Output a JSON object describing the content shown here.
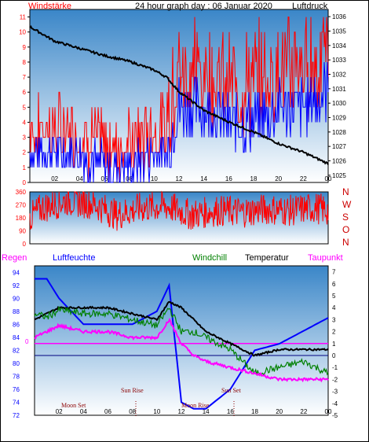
{
  "colors": {
    "wind": "#ff0000",
    "gust_fill": "#0000ff",
    "pressure": "#000000",
    "temperature": "#000000",
    "windchill": "#008000",
    "dewpoint": "#ff00ff",
    "humidity": "#0000ff",
    "rain": "#ff00ff",
    "bg_top": "#3a86c8",
    "bg_bottom": "#ffffff"
  },
  "top_chart": {
    "title": "24 hour graph day : 06 Januar 2020",
    "left_label": "Windstärke",
    "right_label": "Luftdruck",
    "x_ticks": [
      "02",
      "04",
      "06",
      "08",
      "10",
      "12",
      "14",
      "16",
      "18",
      "20",
      "22",
      "00"
    ],
    "y_left_ticks": [
      "0",
      "1",
      "2",
      "3",
      "4",
      "5",
      "6",
      "7",
      "8",
      "9",
      "10",
      "11"
    ],
    "y_right_ticks": [
      "1025",
      "1026",
      "1027",
      "1028",
      "1029",
      "1030",
      "1031",
      "1032",
      "1033",
      "1034",
      "1035",
      "1036"
    ]
  },
  "direction_chart": {
    "y_ticks": [
      "0",
      "90",
      "180",
      "270",
      "360"
    ],
    "right_labels": [
      "N",
      "W",
      "S",
      "O",
      "N"
    ]
  },
  "bottom_chart": {
    "labels": {
      "rain": "Regen",
      "humidity": "Luftfeuchte",
      "windchill": "Windchill",
      "temperature": "Temperatur",
      "dewpoint": "Taupunkt"
    },
    "y_left_ticks": [
      "72",
      "74",
      "76",
      "78",
      "80",
      "82",
      "84",
      "86",
      "88",
      "90",
      "92",
      "94"
    ],
    "y_right_ticks": [
      "-5",
      "-4",
      "-3",
      "-2",
      "-1",
      "0",
      "1",
      "2",
      "3",
      "4",
      "5",
      "6",
      "7"
    ],
    "x_ticks": [
      "02",
      "04",
      "06",
      "08",
      "10",
      "12",
      "14",
      "16",
      "18",
      "20",
      "22",
      "00"
    ],
    "rain_axis_label": "0",
    "events": {
      "moon_set": "Moon Set",
      "sun_rise": "Sun Rise",
      "moon_rise": "Moon Rise",
      "sun_set": "Sun Set"
    }
  },
  "chart_data": [
    {
      "type": "line",
      "title": "24 hour graph day : 06 Januar 2020",
      "xlabel": "",
      "ylabel": "Windstärke",
      "y2label": "Luftdruck",
      "ylim": [
        0,
        11.5
      ],
      "y2lim": [
        1024.5,
        1036.5
      ],
      "x_hours": [
        0,
        2,
        4,
        6,
        8,
        10,
        11,
        12,
        14,
        16,
        18,
        20,
        22,
        24
      ],
      "series": [
        {
          "name": "Luftdruck",
          "axis": "right",
          "values": [
            1035.3,
            1034.3,
            1033.8,
            1033.3,
            1032.9,
            1032.3,
            1031.8,
            1030.8,
            1029.5,
            1028.7,
            1028.0,
            1027.2,
            1026.6,
            1025.8
          ]
        },
        {
          "name": "Windstärke",
          "axis": "left",
          "values": [
            2,
            2,
            2,
            1,
            1,
            2,
            2,
            5,
            5,
            4,
            4,
            5,
            5,
            6
          ]
        }
      ]
    },
    {
      "type": "line",
      "ylim": [
        0,
        360
      ],
      "x_hours": [
        0,
        1,
        3,
        5,
        7,
        9,
        11,
        13,
        15,
        17,
        19,
        21,
        23,
        24
      ],
      "series": [
        {
          "values": [
            180,
            250,
            300,
            280,
            200,
            250,
            260,
            200,
            230,
            220,
            240,
            230,
            250,
            230
          ]
        }
      ]
    },
    {
      "type": "line",
      "ylim": [
        72,
        95
      ],
      "y2lim": [
        -5,
        7.5
      ],
      "x_hours": [
        0,
        1,
        2,
        4,
        6,
        8,
        10,
        11,
        12,
        13,
        14,
        16,
        18,
        20,
        22,
        24
      ],
      "series": [
        {
          "name": "Luftfeuchte",
          "axis": "left",
          "values": [
            93,
            93,
            90,
            86,
            86,
            86,
            88,
            92,
            74,
            73,
            73,
            76,
            82,
            83,
            85,
            87
          ]
        },
        {
          "name": "Temperatur",
          "axis": "right",
          "values": [
            3,
            3.5,
            4,
            4,
            4,
            3.5,
            3,
            4.5,
            4,
            3,
            2,
            1,
            0,
            0.5,
            0.5,
            0.5
          ]
        },
        {
          "name": "Windchill",
          "axis": "right",
          "values": [
            3.5,
            3.2,
            3.8,
            3.5,
            3.5,
            3,
            2.5,
            4,
            2,
            2,
            1.5,
            0.5,
            -1.5,
            -1,
            -0.5,
            -1.5
          ]
        },
        {
          "name": "Taupunkt",
          "axis": "right",
          "values": [
            1.5,
            2,
            2.5,
            2,
            2,
            1.5,
            1.5,
            3,
            1,
            0,
            -0.5,
            -1,
            -1.5,
            -2,
            -2,
            -2
          ]
        },
        {
          "name": "Regen",
          "axis": "left",
          "values": [
            0,
            0,
            0,
            0,
            0,
            0,
            0,
            0,
            0,
            0,
            0,
            0,
            0,
            0,
            0,
            0
          ]
        }
      ]
    }
  ]
}
